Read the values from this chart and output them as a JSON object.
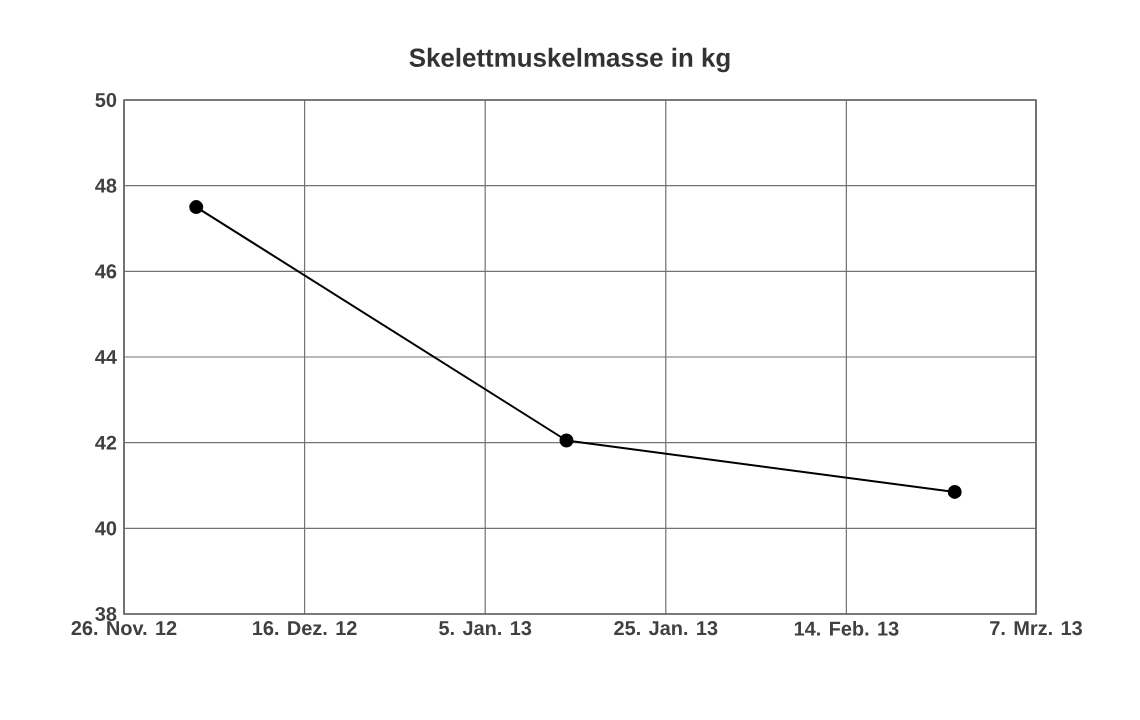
{
  "chart_data": {
    "type": "line",
    "title": "Skelettmuskelmasse in kg",
    "x": [
      "2012-12-04",
      "2013-01-14",
      "2013-02-26"
    ],
    "series": [
      {
        "color": "#000000",
        "values": [
          47.5,
          42.05,
          40.85
        ]
      }
    ],
    "xlim": [
      "2012-11-26",
      "2013-03-07"
    ],
    "xticks": [
      {
        "value": "2012-11-26",
        "label": "26. Nov. 12"
      },
      {
        "value": "2012-12-16",
        "label": "16. Dez. 12"
      },
      {
        "value": "2013-01-05",
        "label": "5. Jan. 13"
      },
      {
        "value": "2013-01-25",
        "label": "25. Jan. 13"
      },
      {
        "value": "2013-02-14",
        "label": "14. Feb. 13"
      },
      {
        "value": "2013-03-07",
        "label": "7. Mrz. 13"
      }
    ],
    "ylim": [
      38,
      50
    ],
    "yticks": [
      38,
      40,
      42,
      44,
      46,
      48,
      50
    ],
    "grid": true,
    "marker": "circle",
    "line_style": "solid"
  }
}
